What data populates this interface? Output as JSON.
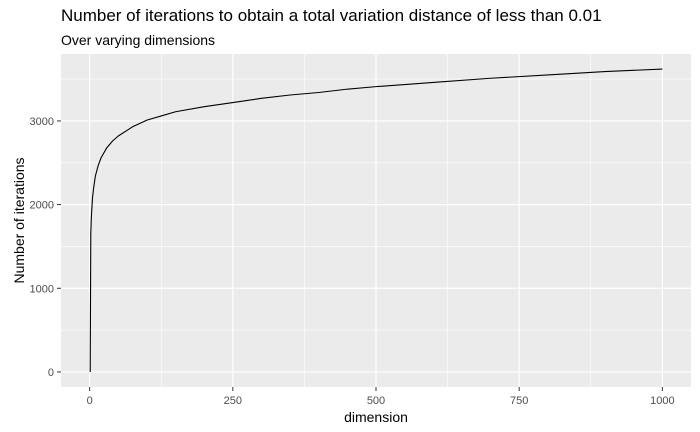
{
  "chart_data": {
    "type": "line",
    "title": "Number of iterations to obtain a total variation distance of less than 0.01",
    "subtitle": "Over varying dimensions",
    "xlabel": "dimension",
    "ylabel": "Number of iterations",
    "xlim": [
      -50,
      1050
    ],
    "ylim": [
      -180,
      3800
    ],
    "x_ticks": [
      0,
      250,
      500,
      750,
      1000
    ],
    "y_ticks": [
      0,
      1000,
      2000,
      3000
    ],
    "grid": true,
    "legend": "none",
    "colors": {
      "panel": "#ebebeb",
      "grid": "#ffffff",
      "line": "#000000"
    },
    "series": [
      {
        "x": [
          1,
          2,
          3,
          5,
          7,
          10,
          15,
          20,
          30,
          40,
          50,
          75,
          100,
          125,
          150,
          200,
          250,
          300,
          350,
          400,
          450,
          500,
          600,
          700,
          800,
          900,
          1000
        ],
        "values": [
          0,
          1650,
          1850,
          2080,
          2200,
          2340,
          2470,
          2560,
          2680,
          2760,
          2820,
          2930,
          3010,
          3060,
          3110,
          3170,
          3220,
          3270,
          3310,
          3340,
          3380,
          3410,
          3460,
          3510,
          3550,
          3590,
          3620
        ]
      }
    ]
  }
}
